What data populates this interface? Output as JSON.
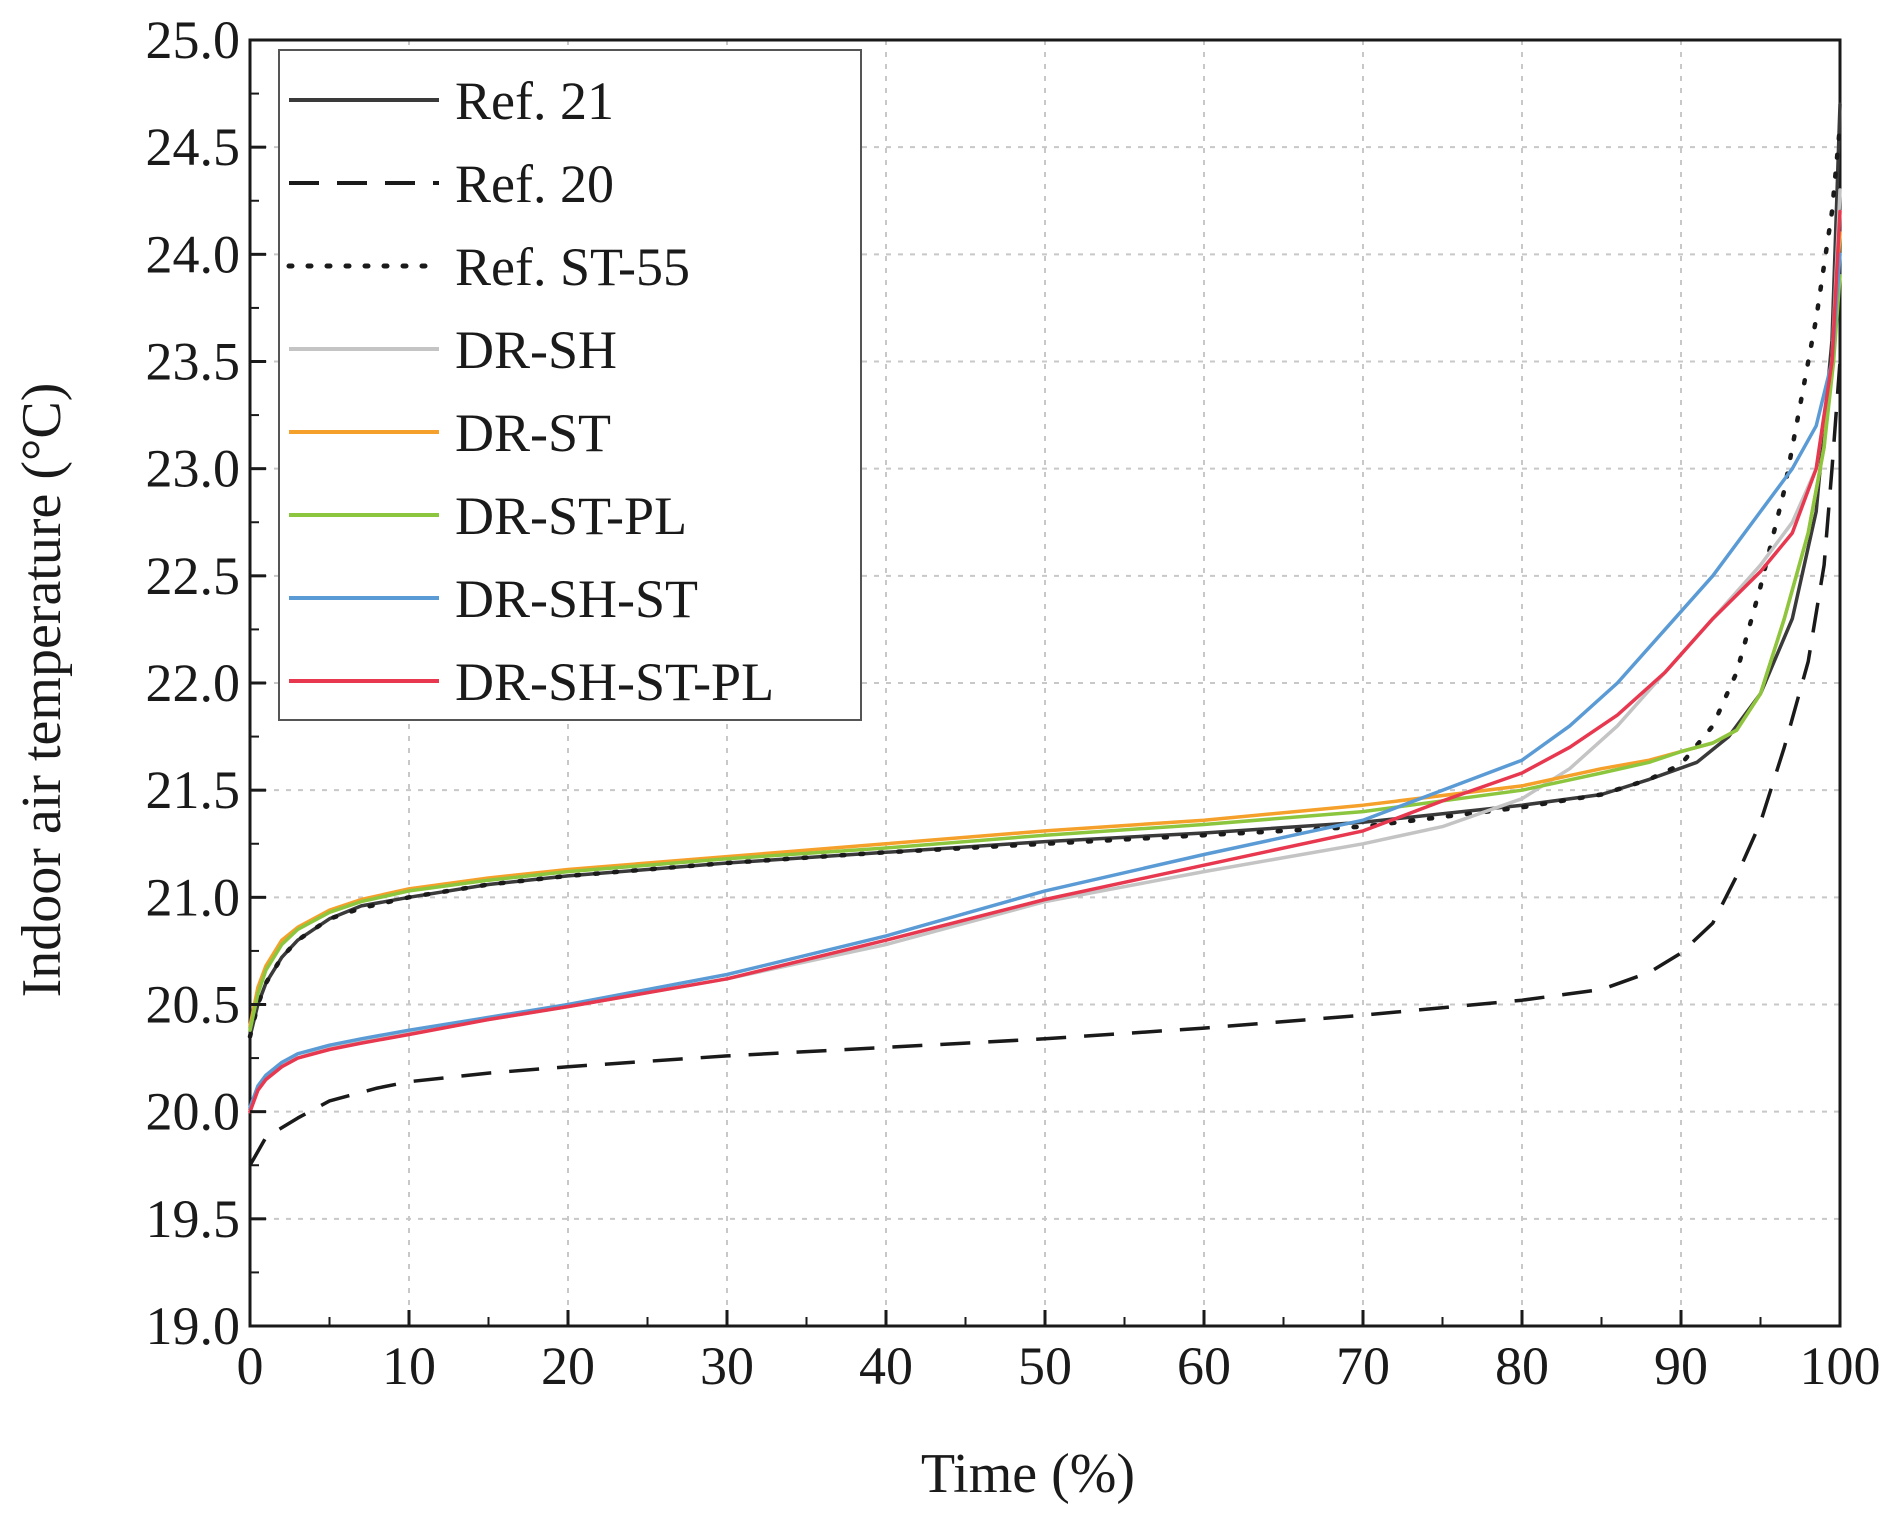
{
  "chart_data": {
    "type": "line",
    "title": "",
    "xlabel": "Time (%)",
    "ylabel": "Indoor air temperature (°C)",
    "xlim": [
      0,
      100
    ],
    "ylim": [
      19.0,
      25.0
    ],
    "xticks": [
      0,
      10,
      20,
      30,
      40,
      50,
      60,
      70,
      80,
      90,
      100
    ],
    "yticks": [
      19.0,
      19.5,
      20.0,
      20.5,
      21.0,
      21.5,
      22.0,
      22.5,
      23.0,
      23.5,
      24.0,
      24.5,
      25.0
    ],
    "xtick_labels": [
      "0",
      "10",
      "20",
      "30",
      "40",
      "50",
      "60",
      "70",
      "80",
      "90",
      "100"
    ],
    "ytick_labels": [
      "19.0",
      "19.5",
      "20.0",
      "20.5",
      "21.0",
      "21.5",
      "22.0",
      "22.5",
      "23.0",
      "23.5",
      "24.0",
      "24.5",
      "25.0"
    ],
    "grid": true,
    "legend_position": "top-left",
    "series": [
      {
        "name": "Ref. 21",
        "color": "#3a3a3a",
        "style": "solid",
        "x": [
          0,
          0.5,
          1,
          2,
          3,
          5,
          7,
          10,
          15,
          20,
          30,
          40,
          50,
          60,
          70,
          80,
          85,
          88,
          91,
          93,
          95,
          97,
          98.5,
          99.5,
          100
        ],
        "y": [
          20.35,
          20.5,
          20.6,
          20.72,
          20.8,
          20.9,
          20.96,
          21.0,
          21.06,
          21.1,
          21.16,
          21.21,
          21.26,
          21.3,
          21.35,
          21.43,
          21.48,
          21.55,
          21.63,
          21.75,
          21.95,
          22.3,
          22.8,
          23.6,
          24.7
        ]
      },
      {
        "name": "Ref. 20",
        "color": "#1a1a1a",
        "style": "dashed",
        "x": [
          0,
          1,
          3,
          5,
          8,
          10,
          15,
          20,
          30,
          40,
          50,
          60,
          70,
          80,
          85,
          88,
          90,
          92,
          93.5,
          95,
          96.5,
          98,
          99,
          99.5,
          100
        ],
        "y": [
          19.75,
          19.88,
          19.97,
          20.05,
          20.11,
          20.14,
          20.18,
          20.21,
          20.26,
          20.3,
          20.34,
          20.39,
          20.45,
          20.52,
          20.57,
          20.65,
          20.74,
          20.88,
          21.1,
          21.35,
          21.7,
          22.1,
          22.55,
          23.0,
          23.5
        ]
      },
      {
        "name": "Ref. ST-55",
        "color": "#1a1a1a",
        "style": "dotted",
        "x": [
          0,
          0.5,
          1,
          2,
          3,
          5,
          7,
          10,
          15,
          20,
          30,
          40,
          50,
          60,
          70,
          80,
          85,
          88,
          90,
          92,
          93.5,
          95,
          96.5,
          97.5,
          98.5,
          99.5,
          100
        ],
        "y": [
          20.35,
          20.5,
          20.6,
          20.72,
          20.8,
          20.9,
          20.95,
          21.0,
          21.06,
          21.1,
          21.16,
          21.21,
          21.25,
          21.29,
          21.33,
          21.42,
          21.48,
          21.55,
          21.62,
          21.8,
          22.05,
          22.45,
          22.9,
          23.3,
          23.7,
          24.2,
          24.6
        ]
      },
      {
        "name": "DR-SH",
        "color": "#c4c4c4",
        "style": "solid",
        "x": [
          0,
          0.5,
          1,
          2,
          3,
          5,
          7,
          10,
          15,
          20,
          30,
          40,
          50,
          60,
          70,
          75,
          80,
          83,
          86,
          89,
          92,
          95,
          97,
          98.5,
          99.5,
          100
        ],
        "y": [
          20.0,
          20.1,
          20.15,
          20.21,
          20.25,
          20.3,
          20.33,
          20.37,
          20.43,
          20.49,
          20.62,
          20.78,
          20.98,
          21.12,
          21.25,
          21.33,
          21.46,
          21.6,
          21.8,
          22.05,
          22.3,
          22.55,
          22.75,
          23.0,
          23.5,
          24.3
        ]
      },
      {
        "name": "DR-ST",
        "color": "#f5a02a",
        "style": "solid",
        "x": [
          0,
          0.5,
          1,
          2,
          3,
          5,
          7,
          10,
          15,
          20,
          30,
          40,
          50,
          60,
          70,
          80,
          85,
          88,
          90,
          92,
          93.5,
          95,
          96.5,
          98,
          99,
          99.6,
          100
        ],
        "y": [
          20.4,
          20.58,
          20.68,
          20.8,
          20.86,
          20.94,
          20.99,
          21.04,
          21.09,
          21.13,
          21.19,
          21.25,
          21.31,
          21.36,
          21.43,
          21.52,
          21.6,
          21.64,
          21.68,
          21.72,
          21.78,
          21.95,
          22.3,
          22.7,
          23.1,
          23.6,
          24.1
        ]
      },
      {
        "name": "DR-ST-PL",
        "color": "#8cc63f",
        "style": "solid",
        "x": [
          0,
          0.5,
          1,
          2,
          3,
          5,
          7,
          10,
          15,
          20,
          30,
          40,
          50,
          60,
          70,
          80,
          85,
          88,
          90,
          92,
          93.5,
          95,
          96.5,
          98,
          99,
          99.6,
          100
        ],
        "y": [
          20.38,
          20.55,
          20.66,
          20.78,
          20.85,
          20.93,
          20.98,
          21.03,
          21.08,
          21.12,
          21.18,
          21.23,
          21.29,
          21.34,
          21.4,
          21.5,
          21.58,
          21.63,
          21.68,
          21.72,
          21.78,
          21.95,
          22.3,
          22.7,
          23.1,
          23.5,
          23.9
        ]
      },
      {
        "name": "DR-SH-ST",
        "color": "#5b9bd5",
        "style": "solid",
        "x": [
          0,
          0.5,
          1,
          2,
          3,
          5,
          7,
          10,
          15,
          20,
          30,
          40,
          50,
          60,
          70,
          75,
          80,
          83,
          86,
          89,
          92,
          95,
          97,
          98.5,
          99.5,
          100
        ],
        "y": [
          20.02,
          20.12,
          20.17,
          20.23,
          20.27,
          20.31,
          20.34,
          20.38,
          20.44,
          20.5,
          20.64,
          20.82,
          21.03,
          21.2,
          21.36,
          21.5,
          21.64,
          21.8,
          22.0,
          22.25,
          22.5,
          22.8,
          23.0,
          23.2,
          23.5,
          24.0
        ]
      },
      {
        "name": "DR-SH-ST-PL",
        "color": "#e8384f",
        "style": "solid",
        "x": [
          0,
          0.5,
          1,
          2,
          3,
          5,
          7,
          10,
          15,
          20,
          30,
          40,
          50,
          60,
          70,
          75,
          80,
          83,
          86,
          89,
          92,
          95,
          97,
          98.5,
          99.5,
          100
        ],
        "y": [
          20.0,
          20.1,
          20.15,
          20.21,
          20.25,
          20.29,
          20.32,
          20.36,
          20.43,
          20.49,
          20.62,
          20.8,
          20.99,
          21.15,
          21.31,
          21.45,
          21.58,
          21.7,
          21.85,
          22.05,
          22.3,
          22.52,
          22.7,
          23.0,
          23.5,
          24.2
        ]
      }
    ]
  }
}
